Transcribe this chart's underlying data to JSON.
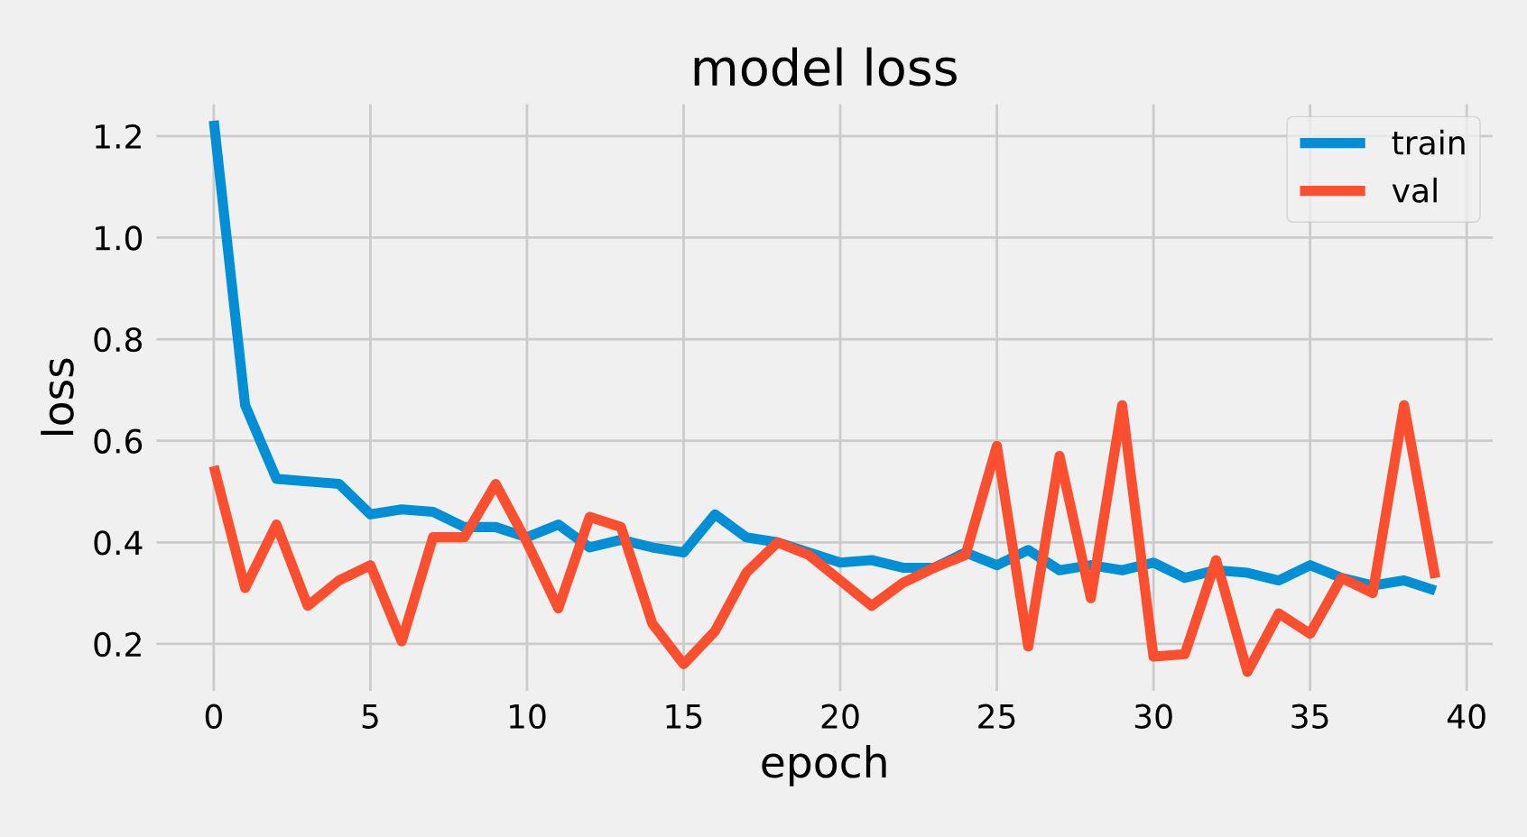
{
  "chart_data": {
    "type": "line",
    "title": "model loss",
    "xlabel": "epoch",
    "ylabel": "loss",
    "x": [
      0,
      1,
      2,
      3,
      4,
      5,
      6,
      7,
      8,
      9,
      10,
      11,
      12,
      13,
      14,
      15,
      16,
      17,
      18,
      19,
      20,
      21,
      22,
      23,
      24,
      25,
      26,
      27,
      28,
      29,
      30,
      31,
      32,
      33,
      34,
      35,
      36,
      37,
      38,
      39
    ],
    "series": [
      {
        "name": "train",
        "color": "#008fd5",
        "values": [
          1.23,
          0.67,
          0.525,
          0.52,
          0.515,
          0.455,
          0.465,
          0.46,
          0.43,
          0.43,
          0.41,
          0.435,
          0.39,
          0.405,
          0.39,
          0.38,
          0.455,
          0.41,
          0.4,
          0.38,
          0.36,
          0.365,
          0.35,
          0.35,
          0.38,
          0.355,
          0.385,
          0.345,
          0.355,
          0.345,
          0.36,
          0.33,
          0.345,
          0.34,
          0.325,
          0.355,
          0.33,
          0.315,
          0.325,
          0.305
        ]
      },
      {
        "name": "val",
        "color": "#fc4f30",
        "values": [
          0.55,
          0.31,
          0.435,
          0.275,
          0.325,
          0.355,
          0.205,
          0.41,
          0.41,
          0.515,
          0.4,
          0.27,
          0.45,
          0.43,
          0.24,
          0.16,
          0.225,
          0.34,
          0.4,
          0.375,
          0.325,
          0.275,
          0.32,
          0.35,
          0.375,
          0.59,
          0.195,
          0.57,
          0.29,
          0.67,
          0.175,
          0.18,
          0.365,
          0.145,
          0.26,
          0.22,
          0.33,
          0.3,
          0.67,
          0.33
        ]
      }
    ],
    "xlim": [
      -1.95,
      40.95
    ],
    "xticks": [
      0,
      5,
      10,
      15,
      20,
      25,
      30,
      35,
      40
    ],
    "ylim": [
      0.1,
      1.27
    ],
    "yticks": [
      0.2,
      0.4,
      0.6,
      0.8,
      {
        "value": 1.0,
        "label": "1.0"
      },
      1.2
    ],
    "grid": true,
    "legend": "top right",
    "marker": "none",
    "line_style": "solid"
  }
}
